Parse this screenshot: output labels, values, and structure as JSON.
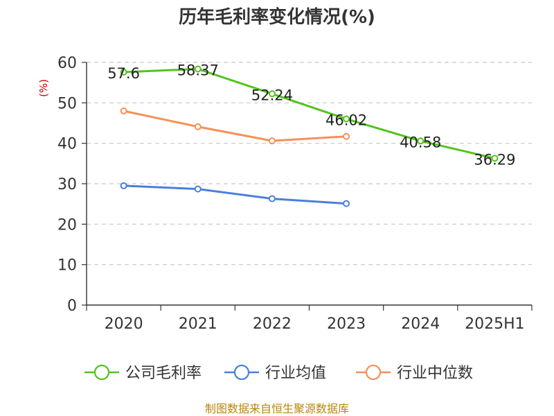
{
  "chart_data": {
    "type": "line",
    "title": "历年毛利率变化情况(%)",
    "ylabel": "(%)",
    "xlabel": "",
    "categories": [
      "2020",
      "2021",
      "2022",
      "2023",
      "2024",
      "2025H1"
    ],
    "ylim": [
      0,
      60
    ],
    "yticks": [
      0,
      10,
      20,
      30,
      40,
      50,
      60
    ],
    "grid": true,
    "legend_position": "bottom",
    "series": [
      {
        "name": "公司毛利率",
        "color": "#52c41a",
        "values": [
          57.6,
          58.37,
          52.24,
          46.02,
          40.58,
          36.29
        ],
        "data_labels": [
          "57.6",
          "58.37",
          "52.24",
          "46.02",
          "40.58",
          "36.29"
        ]
      },
      {
        "name": "行业均值",
        "color": "#4a7fdc",
        "values": [
          29.5,
          28.7,
          26.3,
          25.1,
          null,
          null
        ]
      },
      {
        "name": "行业中位数",
        "color": "#f5905a",
        "values": [
          48.0,
          44.1,
          40.6,
          41.7,
          null,
          null
        ]
      }
    ]
  },
  "footer": {
    "source": "制图数据来自恒生聚源数据库"
  }
}
